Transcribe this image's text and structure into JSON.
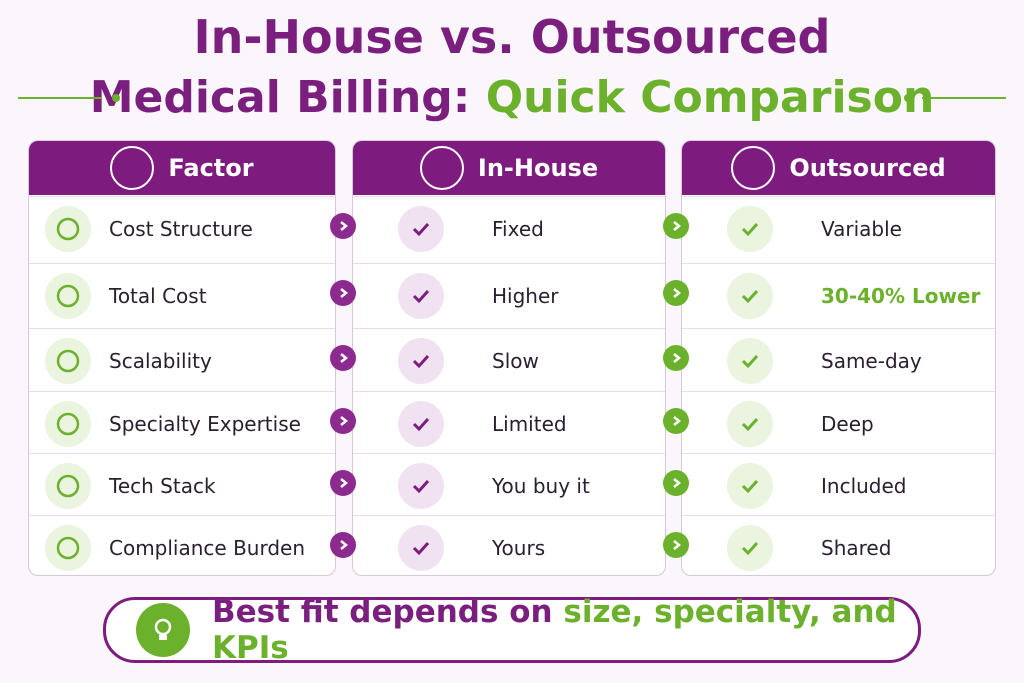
{
  "title": {
    "line1": "In-House vs. Outsourced",
    "line2_main": "Medical Billing:",
    "line2_accent": "Quick Comparison"
  },
  "table": {
    "headers": [
      "Factor",
      "In-House",
      "Outsourced"
    ],
    "rows": [
      {
        "factor": "Cost Structure",
        "in_house": "Fixed",
        "outsourced": "Variable"
      },
      {
        "factor": "Total Cost",
        "in_house": "Higher",
        "outsourced": "30-40% Lower"
      },
      {
        "factor": "Scalability",
        "in_house": "Slow",
        "outsourced": "Same-day"
      },
      {
        "factor": "Specialty Expertise",
        "in_house": "Limited",
        "outsourced": "Deep"
      },
      {
        "factor": "Tech Stack",
        "in_house": "You buy it",
        "outsourced": "Included"
      },
      {
        "factor": "Compliance Burden",
        "in_house": "Yours",
        "outsourced": "Shared"
      }
    ]
  },
  "footer": {
    "main": "Best fit depends on",
    "accent": "size, specialty, and KPIs"
  }
}
